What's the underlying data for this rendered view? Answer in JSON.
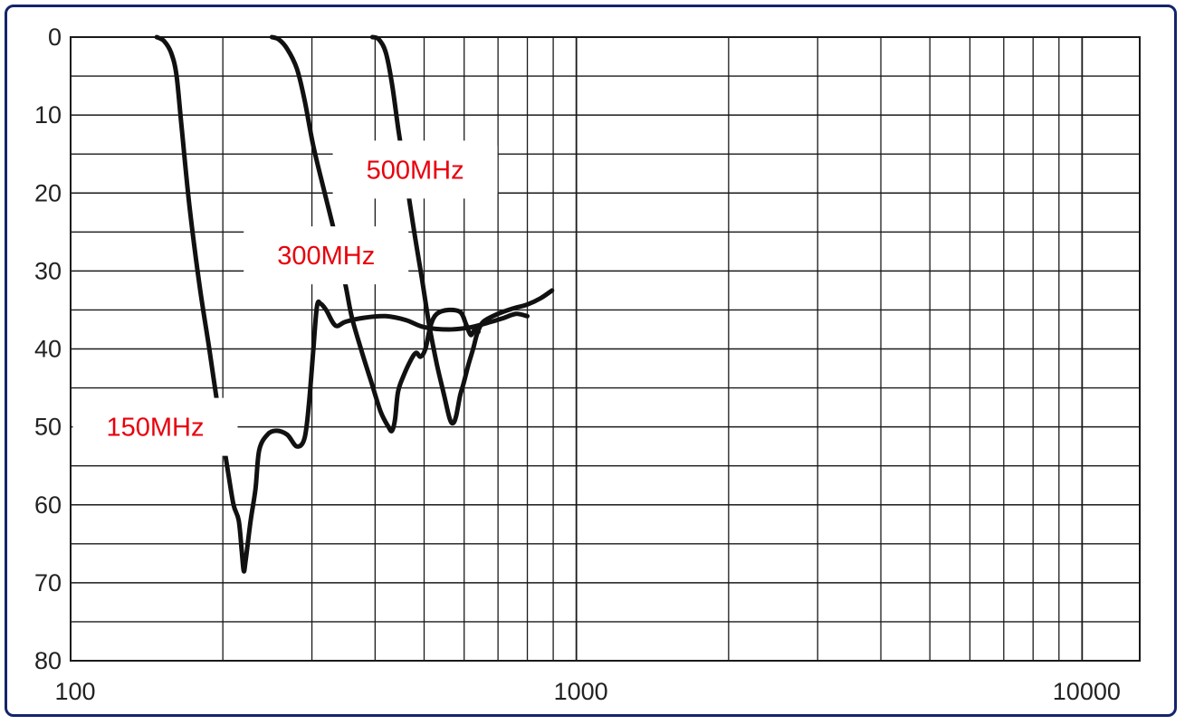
{
  "colors": {
    "frame_border": "#14246b",
    "grid": "#1a1a1a",
    "curve": "#111111",
    "label_text": "#e8000b"
  },
  "chart_data": {
    "type": "line",
    "title": "",
    "xlabel": "",
    "ylabel": "",
    "x_scale": "log",
    "xlim": [
      100,
      13000
    ],
    "ylim": [
      0,
      80
    ],
    "y_inverted": true,
    "grid": true,
    "x_ticks": [
      {
        "value": 100,
        "label": "100"
      },
      {
        "value": 1000,
        "label": "1000"
      },
      {
        "value": 10000,
        "label": "10000"
      }
    ],
    "y_ticks": [
      {
        "value": 0,
        "label": "0"
      },
      {
        "value": 10,
        "label": "10"
      },
      {
        "value": 20,
        "label": "20"
      },
      {
        "value": 30,
        "label": "30"
      },
      {
        "value": 40,
        "label": "40"
      },
      {
        "value": 50,
        "label": "50"
      },
      {
        "value": 60,
        "label": "60"
      },
      {
        "value": 70,
        "label": "70"
      },
      {
        "value": 80,
        "label": "80"
      }
    ],
    "series": [
      {
        "name": "150MHz",
        "label_anchor": [
          147,
          50
        ],
        "points": [
          [
            148,
            0
          ],
          [
            153,
            0.5
          ],
          [
            158,
            2
          ],
          [
            162,
            5
          ],
          [
            166,
            12
          ],
          [
            172,
            22
          ],
          [
            180,
            32
          ],
          [
            188,
            40
          ],
          [
            196,
            48
          ],
          [
            205,
            56
          ],
          [
            210,
            60
          ],
          [
            215,
            62
          ],
          [
            218,
            66
          ],
          [
            220,
            68.5
          ],
          [
            222,
            67
          ],
          [
            227,
            62
          ],
          [
            232,
            58
          ],
          [
            236,
            53
          ],
          [
            245,
            51
          ],
          [
            255,
            50.5
          ],
          [
            268,
            51
          ],
          [
            280,
            52.5
          ],
          [
            290,
            51.5
          ],
          [
            296,
            47
          ],
          [
            302,
            40
          ],
          [
            307,
            34.5
          ],
          [
            312,
            34.2
          ],
          [
            320,
            35
          ],
          [
            334,
            37
          ],
          [
            350,
            36.5
          ],
          [
            380,
            36
          ],
          [
            420,
            35.8
          ],
          [
            460,
            36.3
          ],
          [
            500,
            37.2
          ],
          [
            560,
            37.5
          ],
          [
            620,
            37.2
          ],
          [
            680,
            36.5
          ],
          [
            720,
            36
          ],
          [
            760,
            35.5
          ],
          [
            800,
            35.8
          ]
        ]
      },
      {
        "name": "300MHz",
        "label_anchor": [
          320,
          28
        ],
        "points": [
          [
            250,
            0
          ],
          [
            258,
            0.3
          ],
          [
            268,
            1.5
          ],
          [
            280,
            4
          ],
          [
            290,
            8
          ],
          [
            302,
            14
          ],
          [
            318,
            20
          ],
          [
            335,
            26
          ],
          [
            350,
            32
          ],
          [
            360,
            36
          ],
          [
            375,
            40
          ],
          [
            392,
            44
          ],
          [
            410,
            48
          ],
          [
            425,
            50
          ],
          [
            432,
            50.5
          ],
          [
            438,
            49
          ],
          [
            444,
            45.5
          ],
          [
            455,
            43.5
          ],
          [
            470,
            41.5
          ],
          [
            482,
            40.5
          ],
          [
            492,
            41
          ],
          [
            503,
            40
          ],
          [
            515,
            37
          ],
          [
            530,
            35.5
          ],
          [
            560,
            35
          ],
          [
            590,
            35.3
          ],
          [
            605,
            36.8
          ],
          [
            618,
            38.2
          ],
          [
            630,
            37.5
          ],
          [
            640,
            37.8
          ]
        ]
      },
      {
        "name": "500MHz",
        "label_anchor": [
          480,
          17
        ],
        "points": [
          [
            395,
            0
          ],
          [
            407,
            0.3
          ],
          [
            420,
            2
          ],
          [
            432,
            6
          ],
          [
            445,
            12
          ],
          [
            460,
            18
          ],
          [
            478,
            25
          ],
          [
            495,
            31
          ],
          [
            512,
            37
          ],
          [
            530,
            42
          ],
          [
            548,
            46
          ],
          [
            562,
            49
          ],
          [
            571,
            49.5
          ],
          [
            579,
            48.5
          ],
          [
            589,
            46
          ],
          [
            598,
            44.5
          ],
          [
            612,
            42
          ],
          [
            625,
            40
          ],
          [
            637,
            38
          ],
          [
            655,
            36.5
          ],
          [
            700,
            35.5
          ],
          [
            750,
            34.8
          ],
          [
            800,
            34.3
          ],
          [
            850,
            33.5
          ],
          [
            895,
            32.5
          ]
        ]
      }
    ]
  }
}
